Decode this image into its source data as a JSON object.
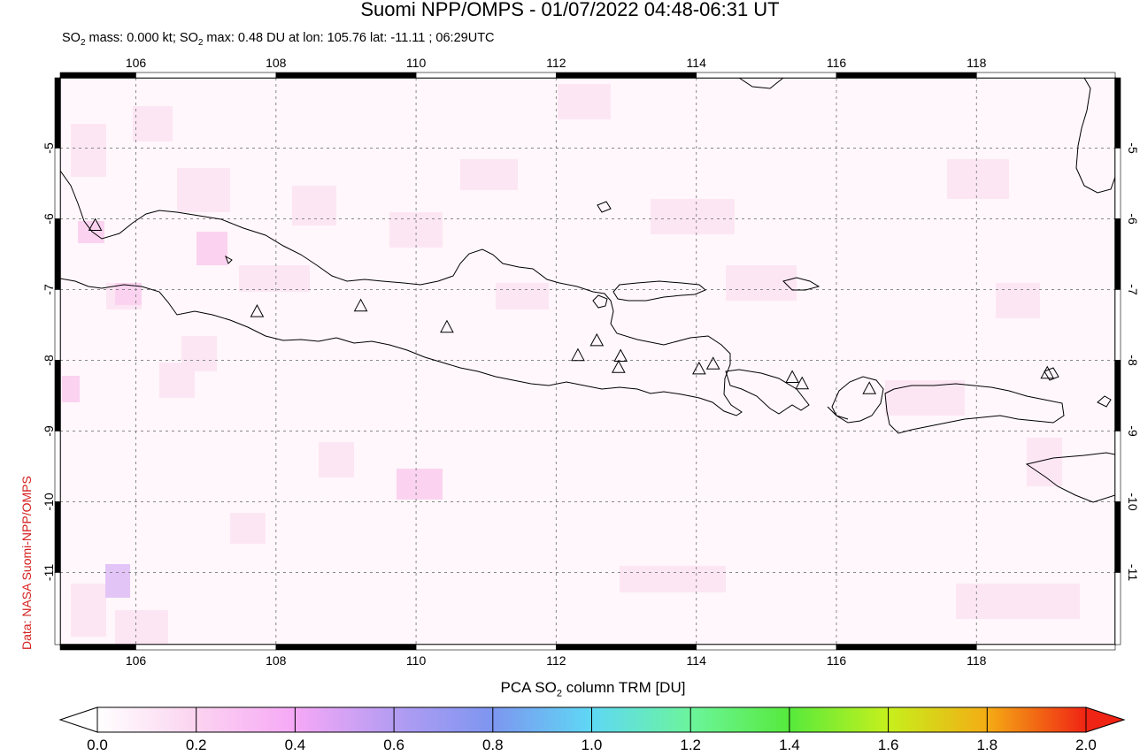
{
  "title": "Suomi NPP/OMPS - 01/07/2022 04:48-06:31 UT",
  "subtitle": {
    "so2_mass_label": "SO",
    "mass_value": " mass: 0.000 kt; SO",
    "max_value": " max: 0.48 DU at lon: 105.76 lat: -11.11 ; 06:29UTC"
  },
  "credit": "Data: NASA Suomi-NPP/OMPS",
  "map": {
    "lon_ticks": [
      "106",
      "108",
      "110",
      "112",
      "114",
      "116",
      "118"
    ],
    "lat_ticks": [
      "-5",
      "-6",
      "-7",
      "-8",
      "-9",
      "-10",
      "-11"
    ],
    "lon_values": [
      106,
      108,
      110,
      112,
      114,
      116,
      118
    ],
    "lat_values": [
      -5,
      -6,
      -7,
      -8,
      -9,
      -10,
      -11
    ],
    "lon_range": [
      105,
      120
    ],
    "lat_range": [
      -12,
      -4
    ],
    "grid": true,
    "volcano_marker": "triangle-icon",
    "volcanoes": [
      {
        "lon": 105.42,
        "lat": -6.1
      },
      {
        "lon": 107.73,
        "lat": -7.32
      },
      {
        "lon": 109.21,
        "lat": -7.24
      },
      {
        "lon": 110.44,
        "lat": -7.54
      },
      {
        "lon": 112.31,
        "lat": -7.94
      },
      {
        "lon": 112.58,
        "lat": -7.73
      },
      {
        "lon": 112.92,
        "lat": -7.95
      },
      {
        "lon": 112.89,
        "lat": -8.11
      },
      {
        "lon": 114.04,
        "lat": -8.13
      },
      {
        "lon": 114.24,
        "lat": -8.06
      },
      {
        "lon": 115.37,
        "lat": -8.25
      },
      {
        "lon": 115.51,
        "lat": -8.34
      },
      {
        "lon": 116.47,
        "lat": -8.41
      },
      {
        "lon": 119.01,
        "lat": -8.19
      }
    ]
  },
  "colorbar": {
    "title_prefix": "PCA SO",
    "title_suffix": " column TRM [DU]",
    "labels": [
      "0.0",
      "0.2",
      "0.4",
      "0.6",
      "0.8",
      "1.0",
      "1.2",
      "1.4",
      "1.6",
      "1.8",
      "2.0"
    ],
    "range": [
      0.0,
      2.0
    ],
    "colors": [
      "#ffffff",
      "#fbd3f0",
      "#f6a8f6",
      "#b49cf2",
      "#7d96f0",
      "#5ed8f4",
      "#6cf49c",
      "#56ea3c",
      "#c6f01c",
      "#f4ac14",
      "#f02414"
    ]
  }
}
